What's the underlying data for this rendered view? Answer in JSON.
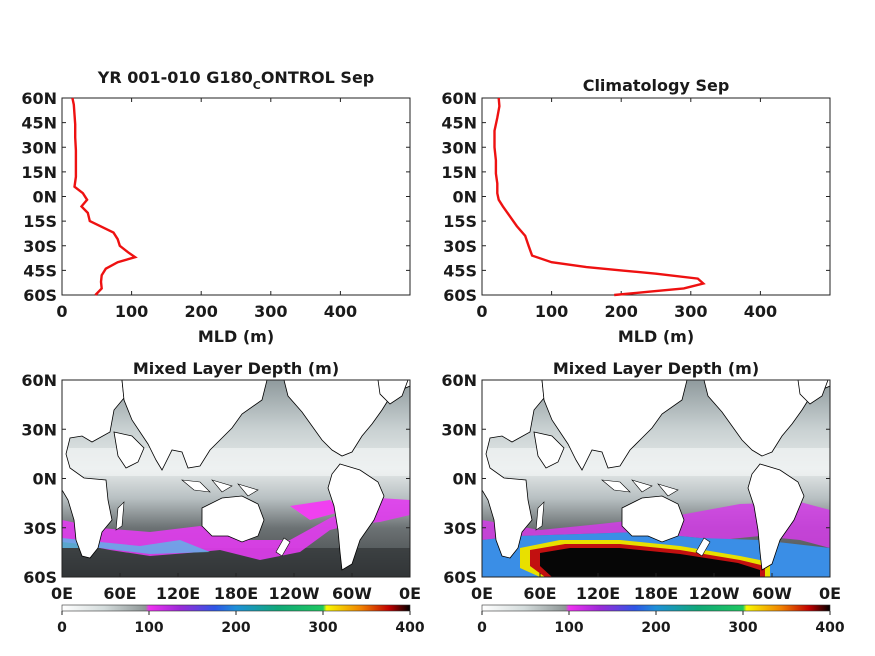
{
  "chart_data": [
    {
      "type": "line",
      "title": "YR 001-010 G180_CONTROL Sep",
      "title_main": "YR 001-010 G180",
      "title_sub": "C",
      "title_rest": "ONTROL Sep",
      "xlabel": "MLD (m)",
      "xlim": [
        0,
        500
      ],
      "ylim": [
        -60,
        60
      ],
      "xticks": [
        "0",
        "100",
        "200",
        "300",
        "400"
      ],
      "yticks": [
        "60N",
        "45N",
        "30N",
        "15N",
        "0N",
        "15S",
        "30S",
        "45S",
        "60S"
      ],
      "line_color": "#ee1111",
      "x_values": [
        48,
        57,
        56,
        57,
        63,
        80,
        105,
        95,
        83,
        80,
        74,
        40,
        37,
        28,
        36,
        30,
        18,
        20,
        20,
        20,
        19,
        19,
        18,
        17,
        15
      ],
      "lat_values": [
        -60,
        -56,
        -52,
        -48,
        -44,
        -40,
        -37,
        -34,
        -30,
        -26,
        -22,
        -15,
        -10,
        -6,
        -2,
        2,
        6,
        12,
        20,
        28,
        36,
        44,
        50,
        56,
        60
      ]
    },
    {
      "type": "line",
      "title": "Climatology Sep",
      "xlabel": "MLD (m)",
      "xlim": [
        0,
        500
      ],
      "ylim": [
        -60,
        60
      ],
      "xticks": [
        "0",
        "100",
        "200",
        "300",
        "400"
      ],
      "yticks": [
        "60N",
        "45N",
        "30N",
        "15N",
        "0N",
        "15S",
        "30S",
        "45S",
        "60S"
      ],
      "line_color": "#ee1111",
      "x_values": [
        190,
        240,
        290,
        318,
        310,
        250,
        200,
        150,
        100,
        72,
        67,
        62,
        50,
        40,
        30,
        24,
        22,
        22,
        20,
        20,
        18,
        18,
        22,
        25,
        24
      ],
      "lat_values": [
        -60,
        -58,
        -56,
        -53,
        -50,
        -47,
        -45,
        -43,
        -40,
        -36,
        -30,
        -24,
        -18,
        -12,
        -6,
        -2,
        2,
        8,
        14,
        22,
        30,
        40,
        48,
        55,
        60
      ]
    },
    {
      "type": "heatmap",
      "title": "Mixed Layer Depth (m)",
      "xticks": [
        "0E",
        "60E",
        "120E",
        "180E",
        "120W",
        "60W",
        "0E"
      ],
      "yticks": [
        "60N",
        "30N",
        "0N",
        "30S",
        "60S"
      ],
      "xlim": [
        0,
        360
      ],
      "ylim": [
        -60,
        60
      ],
      "colorbar_ticks": [
        "0",
        "100",
        "200",
        "300",
        "400"
      ],
      "colorbar_range": [
        0,
        400
      ]
    },
    {
      "type": "heatmap",
      "title": "Mixed Layer Depth (m)",
      "xticks": [
        "0E",
        "60E",
        "120E",
        "180E",
        "120W",
        "60W",
        "0E"
      ],
      "yticks": [
        "60N",
        "30N",
        "0N",
        "30S",
        "60S"
      ],
      "xlim": [
        0,
        360
      ],
      "ylim": [
        -60,
        60
      ],
      "colorbar_ticks": [
        "0",
        "100",
        "200",
        "300",
        "400"
      ],
      "colorbar_range": [
        0,
        400
      ]
    }
  ]
}
